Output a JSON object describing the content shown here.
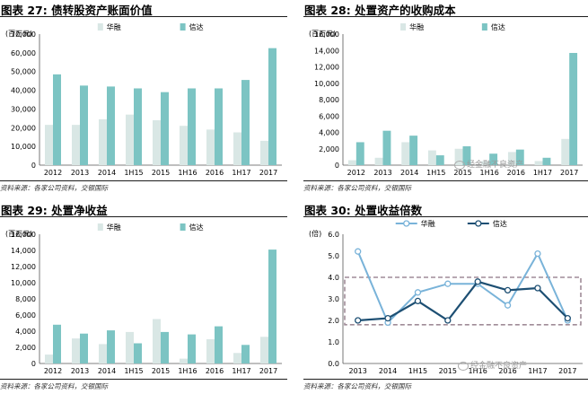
{
  "colors": {
    "huarong": "#d9e7e5",
    "xinda": "#7cc4c3",
    "line_huarong": "#79b3d9",
    "line_xinda": "#1d4f73",
    "box": "#a08c98"
  },
  "charts": [
    {
      "title": "图表 27: 债转股资产账面价值",
      "source": "资料来源：各家公司资料，交银国际",
      "watermark": null,
      "chart_data": {
        "type": "bar",
        "unit": "(百万元)",
        "categories": [
          "2012",
          "2013",
          "2014",
          "1H15",
          "2015",
          "1H16",
          "2016",
          "1H17",
          "2017"
        ],
        "ylim": [
          0,
          70000
        ],
        "yticks": [
          "0",
          "10,000",
          "20,000",
          "30,000",
          "40,000",
          "50,000",
          "60,000",
          "70,000"
        ],
        "series": [
          {
            "name": "华融",
            "values": [
              21500,
              21500,
              24500,
              27000,
              24000,
              21000,
              19000,
              17500,
              13000
            ]
          },
          {
            "name": "信达",
            "values": [
              48500,
              42500,
              42000,
              41000,
              39000,
              41000,
              41000,
              45500,
              62500
            ]
          }
        ]
      }
    },
    {
      "title": "图表 28: 处置资产的收购成本",
      "source": "资料来源：各家公司资料，交银国际",
      "watermark": "经金融不良资产",
      "chart_data": {
        "type": "bar",
        "unit": "(百万元)",
        "categories": [
          "2012",
          "2013",
          "2014",
          "1H15",
          "2015",
          "1H16",
          "2016",
          "1H17",
          "2017"
        ],
        "ylim": [
          0,
          16000
        ],
        "yticks": [
          "0",
          "2,000",
          "4,000",
          "6,000",
          "8,000",
          "10,000",
          "12,000",
          "14,000",
          "16,000"
        ],
        "series": [
          {
            "name": "华融",
            "values": [
              600,
              900,
              2800,
              1800,
              2000,
              500,
              1600,
              500,
              3200
            ]
          },
          {
            "name": "信达",
            "values": [
              2800,
              4200,
              3600,
              1200,
              2300,
              1400,
              1900,
              900,
              13700
            ]
          }
        ]
      }
    },
    {
      "title": "图表 29: 处置净收益",
      "source": "资料来源：各家公司资料，交银国际",
      "watermark": null,
      "chart_data": {
        "type": "bar",
        "unit": "(百万元)",
        "categories": [
          "2012",
          "2013",
          "2014",
          "1H15",
          "2015",
          "1H16",
          "2016",
          "1H17",
          "2017"
        ],
        "ylim": [
          0,
          16000
        ],
        "yticks": [
          "0",
          "2,000",
          "4,000",
          "6,000",
          "8,000",
          "10,000",
          "12,000",
          "14,000",
          "16,000"
        ],
        "series": [
          {
            "name": "华融",
            "values": [
              1100,
              3100,
              2400,
              3900,
              5500,
              600,
              3000,
              1300,
              3300
            ]
          },
          {
            "name": "信达",
            "values": [
              4800,
              3700,
              4100,
              2500,
              3900,
              3600,
              4600,
              2300,
              14100
            ]
          }
        ]
      }
    },
    {
      "title": "图表 30: 处置收益倍数",
      "source": "资料来源：各家公司资料，交银国际",
      "watermark": "经金融不良资产",
      "chart_data": {
        "type": "line",
        "unit": "(倍)",
        "categories": [
          "2013",
          "2014",
          "1H15",
          "2015",
          "1H16",
          "2016",
          "1H17",
          "2017"
        ],
        "ylim": [
          0,
          6
        ],
        "yticks": [
          "0.0",
          "1.0",
          "2.0",
          "3.0",
          "4.0",
          "5.0",
          "6.0"
        ],
        "box_range": [
          1.8,
          4.0
        ],
        "series": [
          {
            "name": "华融",
            "values": [
              5.2,
              1.9,
              3.3,
              3.7,
              3.7,
              2.7,
              5.1,
              2.0
            ]
          },
          {
            "name": "信达",
            "values": [
              2.0,
              2.1,
              2.9,
              2.0,
              3.8,
              3.4,
              3.5,
              2.1
            ]
          }
        ]
      }
    }
  ]
}
